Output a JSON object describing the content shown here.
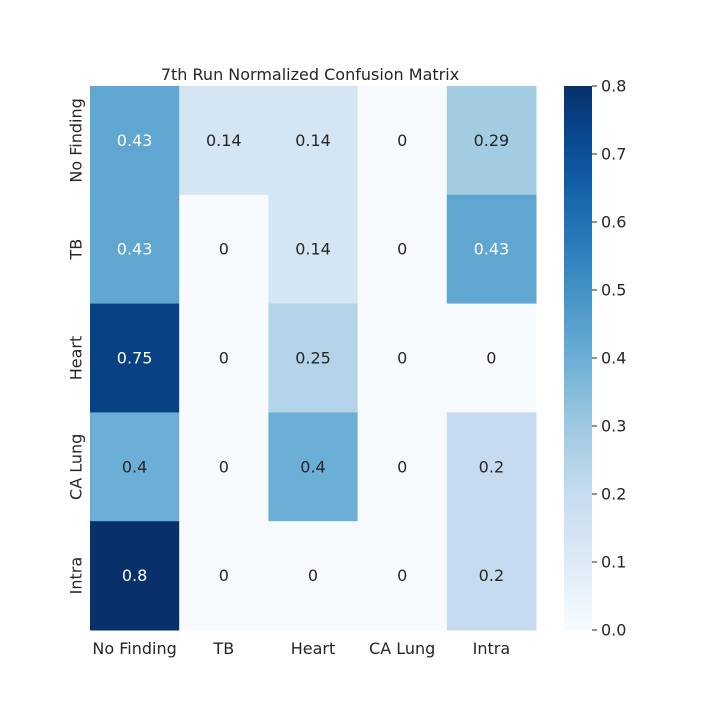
{
  "chart_data": {
    "type": "heatmap",
    "title": "7th Run Normalized Confusion Matrix",
    "x_categories": [
      "No Finding",
      "TB",
      "Heart",
      "CA Lung",
      "Intra"
    ],
    "y_categories": [
      "No Finding",
      "TB",
      "Heart",
      "CA Lung",
      "Intra"
    ],
    "values": [
      [
        0.43,
        0.14,
        0.14,
        0,
        0.29
      ],
      [
        0.43,
        0,
        0.14,
        0,
        0.43
      ],
      [
        0.75,
        0,
        0.25,
        0,
        0
      ],
      [
        0.4,
        0,
        0.4,
        0,
        0.2
      ],
      [
        0.8,
        0,
        0,
        0,
        0.2
      ]
    ],
    "value_labels": [
      [
        "0.43",
        "0.14",
        "0.14",
        "0",
        "0.29"
      ],
      [
        "0.43",
        "0",
        "0.14",
        "0",
        "0.43"
      ],
      [
        "0.75",
        "0",
        "0.25",
        "0",
        "0"
      ],
      [
        "0.4",
        "0",
        "0.4",
        "0",
        "0.2"
      ],
      [
        "0.8",
        "0",
        "0",
        "0",
        "0.2"
      ]
    ],
    "colorbar": {
      "range": [
        0.0,
        0.8
      ],
      "ticks": [
        0.0,
        0.1,
        0.2,
        0.3,
        0.4,
        0.5,
        0.6,
        0.7,
        0.8
      ],
      "tick_labels": [
        "0.0",
        "0.1",
        "0.2",
        "0.3",
        "0.4",
        "0.5",
        "0.6",
        "0.7",
        "0.8"
      ],
      "colormap": "Blues"
    },
    "xlabel": "",
    "ylabel": ""
  }
}
